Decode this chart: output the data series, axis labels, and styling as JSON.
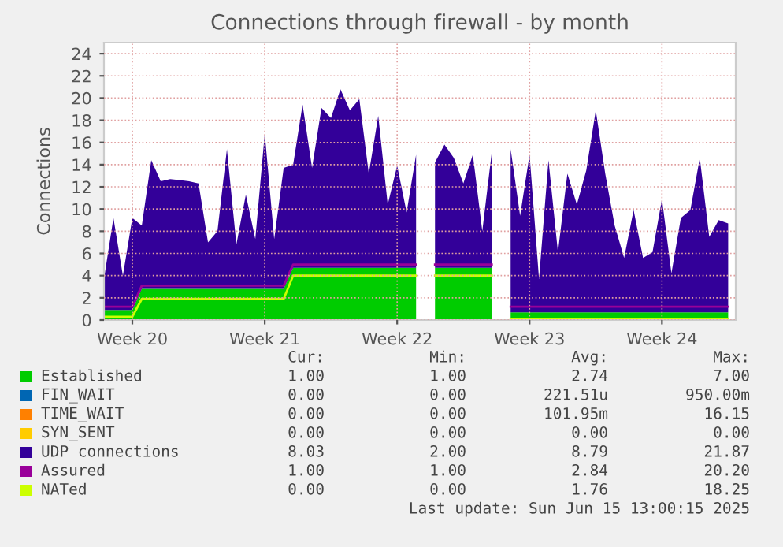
{
  "chart_data": {
    "type": "area",
    "title": "Connections through firewall - by month",
    "ylabel": "Connections",
    "categories": [
      null,
      null,
      null,
      "Week 20",
      null,
      null,
      null,
      null,
      null,
      null,
      null,
      null,
      null,
      null,
      null,
      null,
      null,
      "Week 21",
      null,
      null,
      null,
      null,
      null,
      null,
      null,
      null,
      null,
      null,
      null,
      null,
      null,
      "Week 22",
      null,
      null,
      null,
      null,
      null,
      null,
      null,
      null,
      null,
      null,
      null,
      null,
      null,
      "Week 23",
      null,
      null,
      null,
      null,
      null,
      null,
      null,
      null,
      null,
      null,
      null,
      null,
      null,
      "Week 24",
      null,
      null,
      null,
      null,
      null,
      null,
      null
    ],
    "ylim": [
      0,
      25
    ],
    "yticks": [
      0,
      2,
      4,
      6,
      8,
      10,
      12,
      14,
      16,
      18,
      20,
      22,
      24
    ],
    "grid": true,
    "legend": "bottom",
    "stacked": true,
    "series": [
      {
        "name": "Established",
        "color": "#00cc00",
        "values": [
          0.9,
          0.9,
          0.9,
          0.9,
          2.8,
          2.8,
          2.8,
          2.8,
          2.8,
          2.8,
          2.8,
          2.8,
          2.8,
          2.8,
          2.8,
          2.8,
          2.8,
          2.8,
          2.8,
          2.8,
          4.7,
          4.7,
          4.7,
          4.7,
          4.7,
          4.7,
          4.7,
          4.7,
          4.7,
          4.7,
          4.7,
          4.7,
          4.7,
          4.7,
          null,
          4.7,
          4.7,
          4.7,
          4.7,
          4.7,
          4.7,
          4.7,
          null,
          0.7,
          0.7,
          0.7,
          0.7,
          0.7,
          0.7,
          0.7,
          0.7,
          0.7,
          0.7,
          0.7,
          0.7,
          0.7,
          0.7,
          0.7,
          0.7,
          0.7,
          0.7,
          0.7,
          0.7,
          0.7,
          0.7,
          0.7,
          0.7
        ]
      },
      {
        "name": "FIN_WAIT",
        "color": "#0066b3",
        "values": [
          null,
          null,
          null,
          null,
          null,
          null,
          null,
          null,
          null,
          null,
          null,
          null,
          null,
          null,
          null,
          null,
          null,
          null,
          null,
          null,
          null,
          null,
          null,
          null,
          null,
          null,
          null,
          null,
          null,
          null,
          null,
          null,
          null,
          null,
          null,
          null,
          null,
          null,
          null,
          null,
          null,
          null,
          null,
          null,
          null,
          null,
          null,
          null,
          null,
          null,
          null,
          null,
          null,
          null,
          null,
          null,
          null,
          null,
          null,
          null,
          null,
          null,
          null,
          null,
          null,
          null,
          null
        ]
      },
      {
        "name": "TIME_WAIT",
        "color": "#ff8000",
        "values": [
          null,
          null,
          null,
          null,
          null,
          null,
          null,
          null,
          null,
          null,
          null,
          null,
          null,
          null,
          null,
          null,
          null,
          null,
          null,
          null,
          null,
          null,
          null,
          null,
          null,
          null,
          null,
          null,
          null,
          null,
          null,
          null,
          null,
          null,
          null,
          null,
          null,
          null,
          null,
          null,
          null,
          null,
          null,
          null,
          null,
          null,
          null,
          null,
          null,
          null,
          null,
          null,
          null,
          null,
          null,
          null,
          null,
          null,
          null,
          null,
          null,
          null,
          null,
          null,
          null,
          null,
          null
        ]
      },
      {
        "name": "SYN_SENT",
        "color": "#ffcc00",
        "values": [
          null,
          null,
          null,
          null,
          null,
          null,
          null,
          null,
          null,
          null,
          null,
          null,
          null,
          null,
          null,
          null,
          null,
          null,
          null,
          null,
          null,
          null,
          null,
          null,
          null,
          null,
          null,
          null,
          null,
          null,
          null,
          null,
          null,
          null,
          null,
          null,
          null,
          null,
          null,
          null,
          null,
          null,
          null,
          null,
          null,
          null,
          null,
          null,
          null,
          null,
          null,
          null,
          null,
          null,
          null,
          null,
          null,
          null,
          null,
          null,
          null,
          null,
          null,
          null,
          null,
          null,
          null
        ]
      },
      {
        "name": "UDP connections",
        "color": "#330099",
        "values": [
          2.8,
          8.3,
          3.1,
          8.3,
          5.7,
          11.6,
          9.7,
          9.9,
          9.8,
          9.7,
          9.5,
          4.2,
          5.2,
          12.6,
          4.0,
          8.5,
          4.5,
          14.0,
          4.5,
          10.9,
          9.3,
          14.7,
          9.0,
          14.4,
          13.5,
          16.1,
          14.2,
          15.2,
          8.5,
          13.7,
          5.7,
          9.2,
          5.0,
          10.2,
          null,
          9.5,
          11.1,
          9.9,
          7.6,
          10.2,
          3.3,
          10.4,
          null,
          14.7,
          8.7,
          14.2,
          3.0,
          13.7,
          5.4,
          12.5,
          9.7,
          12.8,
          18.2,
          12.5,
          7.8,
          4.9,
          9.2,
          4.9,
          5.4,
          10.2,
          3.5,
          8.5,
          9.2,
          13.9,
          6.8,
          8.3,
          8.0
        ]
      },
      {
        "name": "Assured",
        "color": "#990099",
        "type": "line",
        "values": [
          1.2,
          1.2,
          1.2,
          1.2,
          3.1,
          3.1,
          3.1,
          3.1,
          3.1,
          3.1,
          3.1,
          3.1,
          3.1,
          3.1,
          3.1,
          3.1,
          3.1,
          3.1,
          3.1,
          3.1,
          5.0,
          5.0,
          5.0,
          5.0,
          5.0,
          5.0,
          5.0,
          5.0,
          5.0,
          5.0,
          5.0,
          5.0,
          5.0,
          5.0,
          null,
          5.0,
          5.0,
          5.0,
          5.0,
          5.0,
          5.0,
          5.0,
          null,
          1.2,
          1.2,
          1.2,
          1.2,
          1.2,
          1.2,
          1.2,
          1.2,
          1.2,
          1.2,
          1.2,
          1.2,
          1.2,
          1.2,
          1.2,
          1.2,
          1.2,
          1.2,
          1.2,
          1.2,
          1.2,
          1.2,
          1.2,
          1.2
        ]
      },
      {
        "name": "NATed",
        "color": "#ccff00",
        "type": "line",
        "values": [
          0.3,
          0.3,
          0.3,
          0.3,
          1.9,
          1.9,
          1.9,
          1.9,
          1.9,
          1.9,
          1.9,
          1.9,
          1.9,
          1.9,
          1.9,
          1.9,
          1.9,
          1.9,
          1.9,
          1.9,
          4.0,
          4.0,
          4.0,
          4.0,
          4.0,
          4.0,
          4.0,
          4.0,
          4.0,
          4.0,
          4.0,
          4.0,
          4.0,
          4.0,
          null,
          4.0,
          4.0,
          4.0,
          4.0,
          4.0,
          4.0,
          4.0,
          null,
          0.1,
          0.1,
          0.1,
          0.1,
          0.1,
          0.1,
          0.1,
          0.1,
          0.1,
          0.1,
          0.1,
          0.1,
          0.1,
          0.1,
          0.1,
          0.1,
          0.1,
          0.1,
          0.1,
          0.1,
          0.1,
          0.1,
          0.1,
          0.1
        ]
      }
    ],
    "annotations": [
      "Cur:",
      "Min:",
      "Avg:",
      "Max:",
      "1.00",
      "1.00",
      "2.74",
      "7.00",
      "0.00",
      "0.00",
      "221.51u",
      "950.00m",
      "0.00",
      "0.00",
      "101.95m",
      "16.15",
      "0.00",
      "0.00",
      "0.00",
      "0.00",
      "8.03",
      "2.00",
      "8.79",
      "21.87",
      "1.00",
      "1.00",
      "2.84",
      "20.20",
      "0.00",
      "0.00",
      "1.76",
      "18.25",
      "Last update: Sun Jun 15 13:00:15 2025"
    ]
  }
}
